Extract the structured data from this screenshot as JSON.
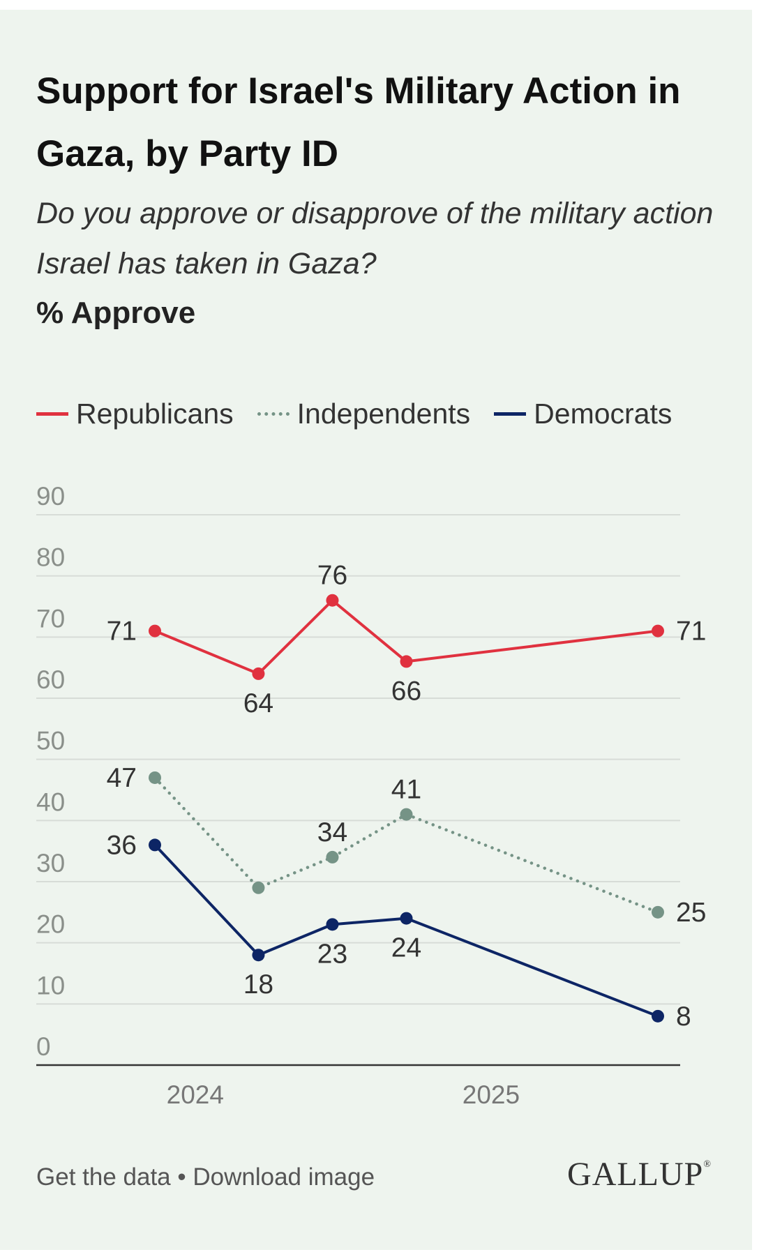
{
  "title": "Support for Israel's Military Action in Gaza, by Party ID",
  "subtitle": "Do you approve or disapprove of the military action Israel has taken in Gaza?",
  "measure": "% Approve",
  "footer": {
    "get_data": "Get the data",
    "separator": " • ",
    "download": "Download image"
  },
  "brand": "GALLUP",
  "brand_mark": "®",
  "chart_data": {
    "type": "line",
    "ylim": [
      0,
      90
    ],
    "yticks": [
      0,
      10,
      20,
      30,
      40,
      50,
      60,
      70,
      80,
      90
    ],
    "grid": true,
    "legend_position": "top-left",
    "x": [
      2023.8,
      2024.15,
      2024.4,
      2024.65,
      2025.5
    ],
    "x_ticks": [
      {
        "label": "2024",
        "value": 2024
      },
      {
        "label": "2025",
        "value": 2025
      }
    ],
    "series": [
      {
        "name": "Republicans",
        "color": "#e0313f",
        "style": "solid",
        "values": [
          71,
          64,
          76,
          66,
          71
        ],
        "labels": [
          "71",
          "64",
          "76",
          "66",
          "71"
        ]
      },
      {
        "name": "Independents",
        "color": "#759386",
        "style": "dotted",
        "values": [
          47,
          29,
          34,
          41,
          25
        ],
        "labels": [
          "47",
          "",
          "34",
          "41",
          "25"
        ]
      },
      {
        "name": "Democrats",
        "color": "#0d2565",
        "style": "solid",
        "values": [
          36,
          18,
          23,
          24,
          8
        ],
        "labels": [
          "36",
          "18",
          "23",
          "24",
          "8"
        ]
      }
    ]
  }
}
